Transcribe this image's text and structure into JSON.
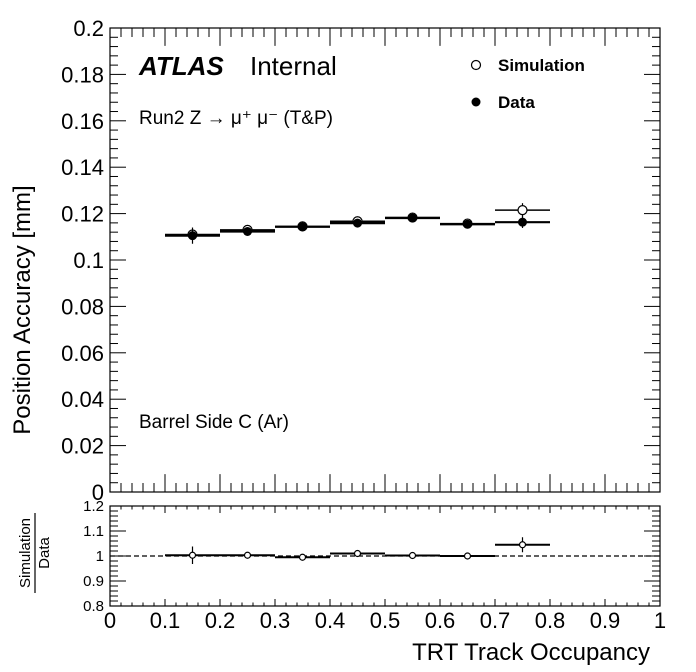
{
  "chart_data": [
    {
      "type": "scatter",
      "panel": "main",
      "atlas_label": "ATLAS",
      "atlas_sublabel": "Internal",
      "annotations": [
        "Run2 Z → μ⁺ μ⁻ (T&P)",
        "Barrel Side C (Ar)"
      ],
      "ylabel": "Position Accuracy [mm]",
      "xlim": [
        0,
        1
      ],
      "ylim": [
        0,
        0.2
      ],
      "yticks": [
        "0",
        "0.02",
        "0.04",
        "0.06",
        "0.08",
        "0.1",
        "0.12",
        "0.14",
        "0.16",
        "0.18",
        "0.2"
      ],
      "legend_position": "top-right",
      "series": [
        {
          "name": "Simulation",
          "marker": "open-circle",
          "x": [
            0.15,
            0.25,
            0.35,
            0.45,
            0.55,
            0.65,
            0.75
          ],
          "x_err": [
            0.05,
            0.05,
            0.05,
            0.05,
            0.05,
            0.05,
            0.05
          ],
          "values": [
            0.111,
            0.113,
            0.1145,
            0.1167,
            0.1183,
            0.1157,
            0.1215
          ],
          "y_err": [
            0.001,
            0.001,
            0.001,
            0.001,
            0.001,
            0.001,
            0.003
          ]
        },
        {
          "name": "Data",
          "marker": "filled-circle",
          "x": [
            0.15,
            0.25,
            0.35,
            0.45,
            0.55,
            0.65,
            0.75
          ],
          "x_err": [
            0.05,
            0.05,
            0.05,
            0.05,
            0.05,
            0.05,
            0.05
          ],
          "values": [
            0.1105,
            0.1123,
            0.1143,
            0.1159,
            0.1181,
            0.1154,
            0.1163
          ],
          "y_err": [
            0.0035,
            0.0015,
            0.0012,
            0.0012,
            0.0012,
            0.0012,
            0.0025
          ]
        }
      ]
    },
    {
      "type": "scatter",
      "panel": "ratio",
      "ylabel_numerator": "Simulation",
      "ylabel_denominator": "Data",
      "xlabel": "TRT Track Occupancy",
      "xlim": [
        0,
        1
      ],
      "ylim": [
        0.8,
        1.2
      ],
      "yticks": [
        "0.8",
        "0.9",
        "1",
        "1.1",
        "1.2"
      ],
      "xticks": [
        "0",
        "0.1",
        "0.2",
        "0.3",
        "0.4",
        "0.5",
        "0.6",
        "0.7",
        "0.8",
        "0.9",
        "1"
      ],
      "reference_line": 1,
      "series": [
        {
          "name": "Simulation/Data",
          "x": [
            0.15,
            0.25,
            0.35,
            0.45,
            0.55,
            0.65,
            0.75
          ],
          "x_err": [
            0.05,
            0.05,
            0.05,
            0.05,
            0.05,
            0.05,
            0.05
          ],
          "values": [
            1.003,
            1.003,
            0.995,
            1.01,
            1.002,
            1.0,
            1.045
          ],
          "y_err": [
            0.035,
            0.0,
            0.0,
            0.0,
            0.0,
            0.0,
            0.03
          ]
        }
      ]
    }
  ]
}
